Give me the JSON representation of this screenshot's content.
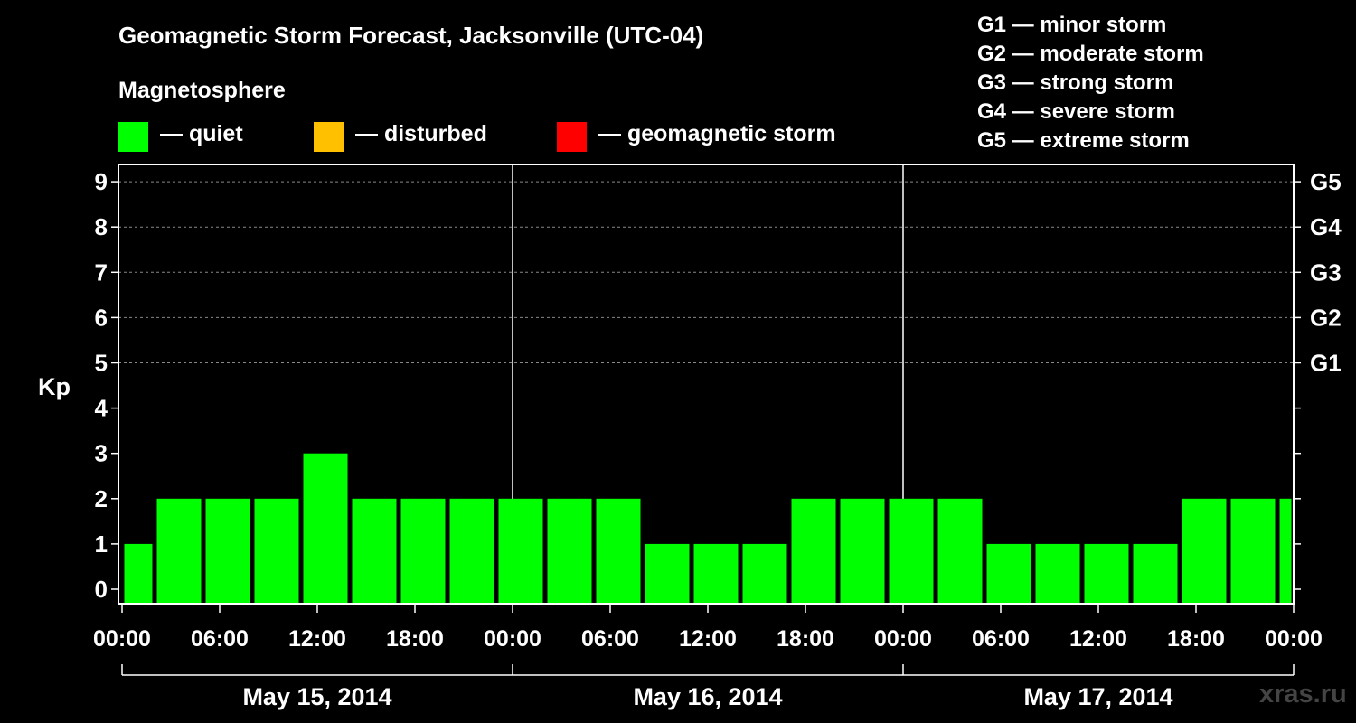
{
  "title": "Geomagnetic Storm Forecast, Jacksonville (UTC-04)",
  "legend": {
    "heading": "Magnetosphere",
    "items": [
      {
        "color": "#00ff00",
        "label": "— quiet"
      },
      {
        "color": "#ffc000",
        "label": "— disturbed"
      },
      {
        "color": "#ff0000",
        "label": "— geomagnetic storm"
      }
    ]
  },
  "storm_scale": [
    "G1 — minor storm",
    "G2 — moderate storm",
    "G3 — strong storm",
    "G4 — severe storm",
    "G5 — extreme storm"
  ],
  "watermark": "xras.ru",
  "chart_data": {
    "type": "bar",
    "ylabel": "Kp",
    "ylim": [
      0,
      9
    ],
    "yticks": [
      0,
      1,
      2,
      3,
      4,
      5,
      6,
      7,
      8,
      9
    ],
    "y_right_ticks": [
      {
        "value": 5,
        "label": "G1"
      },
      {
        "value": 6,
        "label": "G2"
      },
      {
        "value": 7,
        "label": "G3"
      },
      {
        "value": 8,
        "label": "G4"
      },
      {
        "value": 9,
        "label": "G5"
      }
    ],
    "grid": "dashed horizontal lines at Kp 5–9",
    "x_hours_range": [
      0,
      72
    ],
    "xtick_labels": [
      "00:00",
      "06:00",
      "12:00",
      "18:00",
      "00:00",
      "06:00",
      "12:00",
      "18:00",
      "00:00",
      "06:00",
      "12:00",
      "18:00",
      "00:00"
    ],
    "dates": [
      "May 15, 2014",
      "May 16, 2014",
      "May 17, 2014"
    ],
    "day_separator_hours": [
      24,
      48
    ],
    "bar_color": "#00ff00",
    "bars": [
      {
        "start": "00:00",
        "end": "02:00",
        "kp": 1
      },
      {
        "start": "02:00",
        "end": "05:00",
        "kp": 2
      },
      {
        "start": "05:00",
        "end": "08:00",
        "kp": 2
      },
      {
        "start": "08:00",
        "end": "11:00",
        "kp": 2
      },
      {
        "start": "11:00",
        "end": "14:00",
        "kp": 3
      },
      {
        "start": "14:00",
        "end": "17:00",
        "kp": 2
      },
      {
        "start": "17:00",
        "end": "20:00",
        "kp": 2
      },
      {
        "start": "20:00",
        "end": "23:00",
        "kp": 2
      },
      {
        "start": "23:00",
        "end": "02:00",
        "kp": 2
      },
      {
        "start": "02:00",
        "end": "05:00",
        "kp": 2
      },
      {
        "start": "05:00",
        "end": "08:00",
        "kp": 2
      },
      {
        "start": "08:00",
        "end": "11:00",
        "kp": 1
      },
      {
        "start": "11:00",
        "end": "14:00",
        "kp": 1
      },
      {
        "start": "14:00",
        "end": "17:00",
        "kp": 1
      },
      {
        "start": "17:00",
        "end": "20:00",
        "kp": 2
      },
      {
        "start": "20:00",
        "end": "23:00",
        "kp": 2
      },
      {
        "start": "23:00",
        "end": "02:00",
        "kp": 2
      },
      {
        "start": "02:00",
        "end": "05:00",
        "kp": 2
      },
      {
        "start": "05:00",
        "end": "08:00",
        "kp": 1
      },
      {
        "start": "08:00",
        "end": "11:00",
        "kp": 1
      },
      {
        "start": "11:00",
        "end": "14:00",
        "kp": 1
      },
      {
        "start": "14:00",
        "end": "17:00",
        "kp": 1
      },
      {
        "start": "17:00",
        "end": "20:00",
        "kp": 2
      },
      {
        "start": "20:00",
        "end": "23:00",
        "kp": 2
      },
      {
        "start": "23:00",
        "end": "00:00",
        "kp": 2
      }
    ]
  }
}
